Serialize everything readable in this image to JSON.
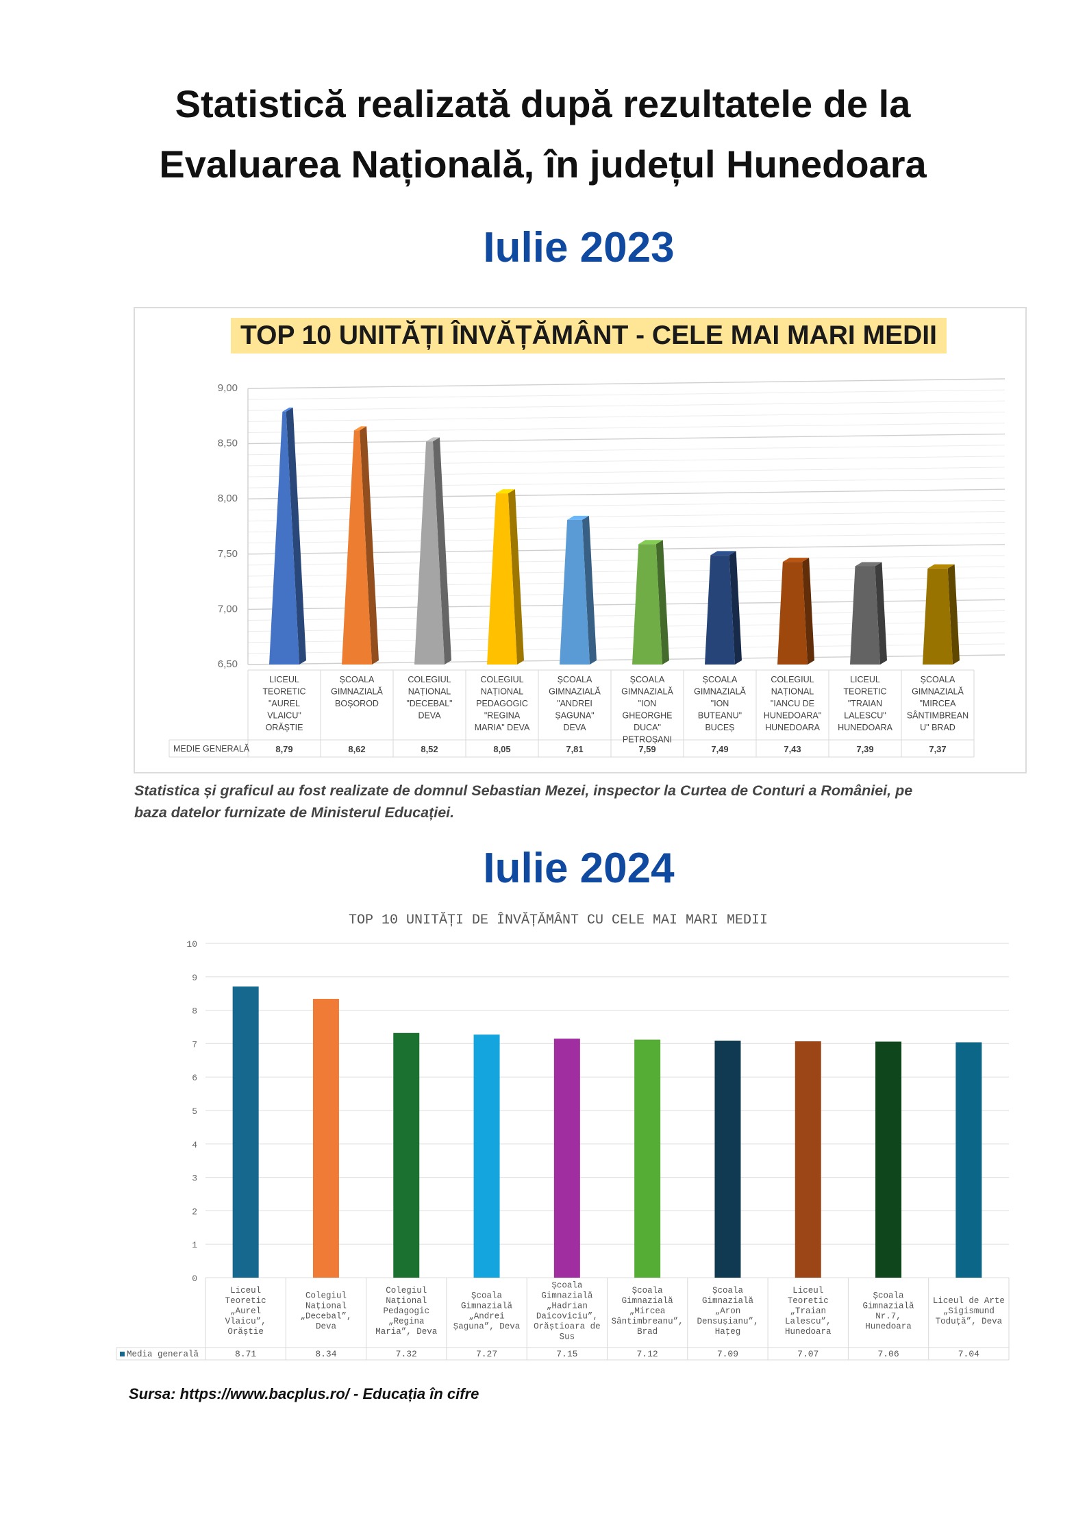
{
  "header": {
    "title_line1": "Statistică realizată după rezultatele de la",
    "title_line2": "Evaluarea Națională, în județul Hunedoara"
  },
  "section_2023": {
    "year_label": "Iulie 2023",
    "caption_line1": "Statistica și graficul au fost realizate de domnul Sebastian Mezei, inspector la Curtea de Conturi a României, pe",
    "caption_line2": "baza datelor furnizate de Ministerul Educației."
  },
  "section_2024": {
    "year_label": "Iulie 2024",
    "source": "Sursa: https://www.bacplus.ro/ - Educația în cifre"
  },
  "chart_data": [
    {
      "type": "bar",
      "title": "TOP 10 UNITĂȚI ÎNVĂȚĂMÂNT - CELE MAI MARI MEDII",
      "row_label": "MEDIE GENERALĂ",
      "categories": [
        [
          "LICEUL",
          "TEORETIC",
          "\"AUREL",
          "VLAICU\"",
          "ORĂȘTIE"
        ],
        [
          "ȘCOALA",
          "GIMNAZIALĂ",
          "BOȘOROD"
        ],
        [
          "COLEGIUL",
          "NAȚIONAL",
          "\"DECEBAL\"",
          "DEVA"
        ],
        [
          "COLEGIUL",
          "NAȚIONAL",
          "PEDAGOGIC",
          "\"REGINA",
          "MARIA\" DEVA"
        ],
        [
          "ȘCOALA",
          "GIMNAZIALĂ",
          "\"ANDREI",
          "ȘAGUNA\"",
          "DEVA"
        ],
        [
          "ȘCOALA",
          "GIMNAZIALĂ",
          "\"ION",
          "GHEORGHE",
          "DUCA\"",
          "PETROȘANI"
        ],
        [
          "ȘCOALA",
          "GIMNAZIALĂ",
          "\"ION",
          "BUTEANU\"",
          "BUCEȘ"
        ],
        [
          "COLEGIUL",
          "NAȚIONAL",
          "\"IANCU DE",
          "HUNEDOARA\"",
          "HUNEDOARA"
        ],
        [
          "LICEUL",
          "TEORETIC",
          "\"TRAIAN",
          "LALESCU\"",
          "HUNEDOARA"
        ],
        [
          "ȘCOALA",
          "GIMNAZIALĂ",
          "\"MIRCEA",
          "SÂNTIMBREAN",
          "U\" BRAD"
        ]
      ],
      "values": [
        8.79,
        8.62,
        8.52,
        8.05,
        7.81,
        7.59,
        7.49,
        7.43,
        7.39,
        7.37
      ],
      "value_labels": [
        "8,79",
        "8,62",
        "8,52",
        "8,05",
        "7,81",
        "7,59",
        "7,49",
        "7,43",
        "7,39",
        "7,37"
      ],
      "ylim": [
        6.5,
        9.0
      ],
      "yticks": [
        "9,00",
        "8,50",
        "8,00",
        "7,50",
        "7,00",
        "6,50"
      ],
      "colors": [
        "#4472c4",
        "#ed7d31",
        "#a5a5a5",
        "#ffc000",
        "#5b9bd5",
        "#70ad47",
        "#264478",
        "#9e480e",
        "#636363",
        "#997300"
      ],
      "grid": true,
      "legend": "none"
    },
    {
      "type": "bar",
      "title": "TOP 10 UNITĂȚI DE ÎNVĂȚĂMÂNT CU CELE MAI MARI MEDII",
      "series_name": "Media generală",
      "categories": [
        [
          "Liceul",
          "Teoretic",
          "„Aurel",
          "Vlaicu”,",
          "Orăștie"
        ],
        [
          "Colegiul",
          "Național",
          "„Decebal”,",
          "Deva"
        ],
        [
          "Colegiul",
          "Național",
          "Pedagogic",
          "„Regina",
          "Maria”, Deva"
        ],
        [
          "Școala",
          "Gimnazială",
          "„Andrei",
          "Șaguna”, Deva"
        ],
        [
          "Școala",
          "Gimnazială",
          "„Hadrian",
          "Daicoviciu”,",
          "Orăștioara de",
          "Sus"
        ],
        [
          "Școala",
          "Gimnazială",
          "„Mircea",
          "Sântimbreanu”,",
          "Brad"
        ],
        [
          "Școala",
          "Gimnazială",
          "„Aron",
          "Densușianu”,",
          "Hațeg"
        ],
        [
          "Liceul",
          "Teoretic",
          "„Traian",
          "Lalescu”,",
          "Hunedoara"
        ],
        [
          "Școala",
          "Gimnazială",
          "Nr.7,",
          "Hunedoara"
        ],
        [
          "Liceul de Arte",
          "„Sigismund",
          "Toduță”, Deva"
        ]
      ],
      "values": [
        8.71,
        8.34,
        7.32,
        7.27,
        7.15,
        7.12,
        7.09,
        7.07,
        7.06,
        7.04
      ],
      "value_labels": [
        "8.71",
        "8.34",
        "7.32",
        "7.27",
        "7.15",
        "7.12",
        "7.09",
        "7.07",
        "7.06",
        "7.04"
      ],
      "ylim": [
        0,
        10
      ],
      "yticks": [
        "10",
        "9",
        "8",
        "7",
        "6",
        "5",
        "4",
        "3",
        "2",
        "1",
        "0"
      ],
      "colors": [
        "#17688f",
        "#f07b37",
        "#1b7130",
        "#14a4de",
        "#a02ea0",
        "#55ad35",
        "#0f3a52",
        "#9c4516",
        "#10461b",
        "#0b6687"
      ],
      "grid": true,
      "legend": "bottom-left (data table)"
    }
  ]
}
